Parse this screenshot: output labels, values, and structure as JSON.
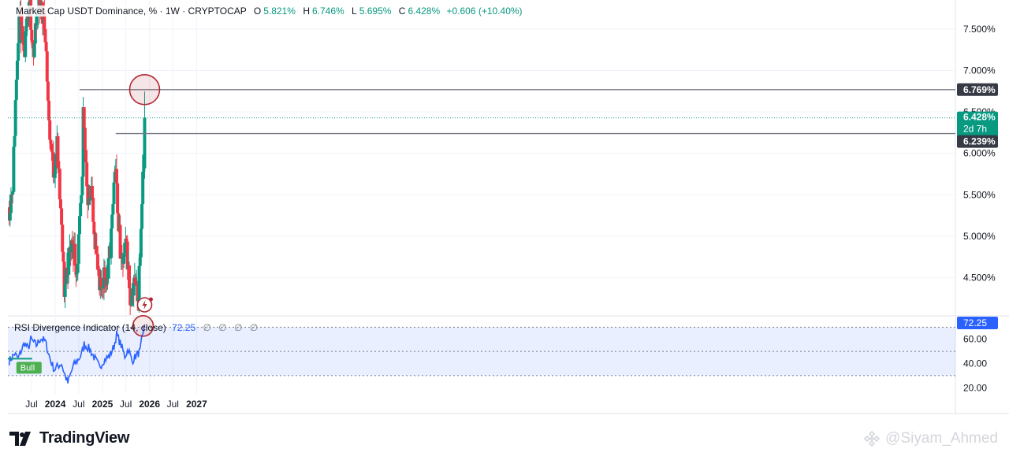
{
  "legend": {
    "title": "Market Cap USDT Dominance, %",
    "interval": "1W",
    "source": "CRYPTOCAP",
    "open_label": "O",
    "open": "5.821%",
    "high_label": "H",
    "high": "6.746%",
    "low_label": "L",
    "low": "5.695%",
    "close_label": "C",
    "close": "6.428%",
    "change": "+0.606 (+10.40%)"
  },
  "price_axis": {
    "current_price": "6.428%",
    "countdown": "2d 7h",
    "level_high": "6.769%",
    "level_mid": "6.239%"
  },
  "rsi_legend": {
    "name": "RSI Divergence Indicator (14, close)",
    "value": "72.25",
    "placeholders": [
      "∅",
      "∅",
      "∅",
      "∅"
    ]
  },
  "rsi_badge": "Bull",
  "brand": {
    "name": "TradingView"
  },
  "watermark": {
    "text": "@Siyam_Ahmed"
  },
  "colors": {
    "up": "#089981",
    "down": "#f23645",
    "rsi": "#2962ff",
    "annotation": "#b22833"
  },
  "chart_data": [
    {
      "type": "candlestick",
      "title": "Market Cap USDT Dominance, %",
      "interval": "1W",
      "y_unit": "%",
      "ylim": [
        4.05,
        7.85
      ],
      "y_ticks": [
        "7.500%",
        "7.000%",
        "6.500%",
        "6.000%",
        "5.500%",
        "5.000%",
        "4.500%"
      ],
      "x_ticks": [
        "Jul",
        "2024",
        "Jul",
        "2025",
        "Jul",
        "2026",
        "Jul",
        "2027"
      ],
      "start": "2023-01-09",
      "end": "2025-11-24",
      "pivots": [
        [
          "2023-01-09",
          5.35
        ],
        [
          "2023-02-06",
          5.65
        ],
        [
          "2023-03-06",
          6.95
        ],
        [
          "2023-03-27",
          7.75
        ],
        [
          "2023-05-01",
          7.15
        ],
        [
          "2023-06-19",
          7.78
        ],
        [
          "2023-07-17",
          7.2
        ],
        [
          "2023-08-28",
          7.85
        ],
        [
          "2023-10-16",
          7.5
        ],
        [
          "2023-11-13",
          6.35
        ],
        [
          "2023-12-18",
          5.8
        ],
        [
          "2024-01-15",
          6.1
        ],
        [
          "2024-02-19",
          5.05
        ],
        [
          "2024-03-11",
          4.35
        ],
        [
          "2024-04-15",
          4.75
        ],
        [
          "2024-05-13",
          4.95
        ],
        [
          "2024-06-17",
          4.6
        ],
        [
          "2024-07-29",
          5.6
        ],
        [
          "2024-08-05",
          6.4
        ],
        [
          "2024-09-09",
          5.5
        ],
        [
          "2024-10-14",
          5.45
        ],
        [
          "2024-11-11",
          4.85
        ],
        [
          "2024-12-09",
          4.3
        ],
        [
          "2025-01-13",
          4.55
        ],
        [
          "2025-02-10",
          4.5
        ],
        [
          "2025-03-10",
          5.0
        ],
        [
          "2025-04-07",
          5.85
        ],
        [
          "2025-04-28",
          5.4
        ],
        [
          "2025-05-26",
          4.6
        ],
        [
          "2025-07-07",
          4.9
        ],
        [
          "2025-08-04",
          4.25
        ],
        [
          "2025-09-01",
          4.45
        ],
        [
          "2025-10-06",
          4.3
        ],
        [
          "2025-10-27",
          5.2
        ],
        [
          "2025-11-24",
          6.428
        ]
      ],
      "annotations": [
        {
          "type": "horizontal_line",
          "label": "6.769%",
          "value": 6.769,
          "from": "2024-07-08"
        },
        {
          "type": "horizontal_line",
          "label": "6.239%",
          "value": 6.239,
          "from": "2025-04-14"
        },
        {
          "type": "horizontal_line",
          "label": "6.428%",
          "value": 6.428,
          "style": "dotted"
        },
        {
          "type": "circle",
          "date": "2025-11-24",
          "value": 6.769
        }
      ]
    },
    {
      "type": "line",
      "title": "RSI Divergence Indicator (14, close)",
      "last_value": 72.25,
      "ylim": [
        15,
        78
      ],
      "y_ticks": [
        "60.00",
        "40.00",
        "20.00"
      ],
      "band": [
        30,
        70
      ],
      "midline": 50,
      "series": [
        {
          "values": [
            [
              42,
              "2023-01-09"
            ],
            [
              48,
              "2023-02-20"
            ],
            [
              44,
              "2023-03-20"
            ],
            [
              50,
              "2023-04-10"
            ],
            [
              57,
              "2023-05-08"
            ],
            [
              52,
              "2023-06-05"
            ],
            [
              60,
              "2023-06-26"
            ],
            [
              55,
              "2023-08-07"
            ],
            [
              61,
              "2023-09-11"
            ],
            [
              58,
              "2023-10-16"
            ],
            [
              42,
              "2023-11-27"
            ],
            [
              35,
              "2023-12-25"
            ],
            [
              38,
              "2024-01-22"
            ],
            [
              40,
              "2024-02-19"
            ],
            [
              32,
              "2024-03-11"
            ],
            [
              24,
              "2024-04-08"
            ],
            [
              38,
              "2024-05-20"
            ],
            [
              43,
              "2024-06-24"
            ],
            [
              47,
              "2024-07-22"
            ],
            [
              56,
              "2024-08-12"
            ],
            [
              52,
              "2024-09-23"
            ],
            [
              44,
              "2024-11-04"
            ],
            [
              37,
              "2024-12-09"
            ],
            [
              43,
              "2025-01-13"
            ],
            [
              46,
              "2025-02-24"
            ],
            [
              54,
              "2025-03-31"
            ],
            [
              64,
              "2025-04-21"
            ],
            [
              55,
              "2025-05-26"
            ],
            [
              46,
              "2025-06-23"
            ],
            [
              52,
              "2025-07-21"
            ],
            [
              42,
              "2025-08-18"
            ],
            [
              47,
              "2025-09-22"
            ],
            [
              50,
              "2025-10-20"
            ],
            [
              60,
              "2025-11-03"
            ],
            [
              72.25,
              "2025-11-24"
            ]
          ]
        }
      ]
    }
  ]
}
